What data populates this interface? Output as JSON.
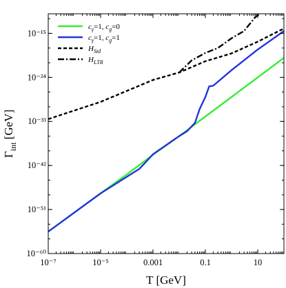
{
  "chart_data": {
    "type": "line",
    "xlabel": "T [GeV]",
    "ylabel": "Γint [GeV]",
    "xscale": "log",
    "yscale": "log",
    "xlim": [
      1e-07,
      100
    ],
    "ylim": [
      1e-60,
      1e-11
    ],
    "x_ticks": [
      {
        "value": 1e-07,
        "label": "10⁻⁷"
      },
      {
        "value": 1e-05,
        "label": "10⁻⁵"
      },
      {
        "value": 0.001,
        "label": "0.001"
      },
      {
        "value": 0.1,
        "label": "0.1"
      },
      {
        "value": 10,
        "label": "10"
      }
    ],
    "y_ticks": [
      {
        "value": 1e-60,
        "label": "10⁻⁶⁰"
      },
      {
        "value": 1e-51,
        "label": "10⁻⁵¹"
      },
      {
        "value": 1e-42,
        "label": "10⁻⁴²"
      },
      {
        "value": 1e-33,
        "label": "10⁻³³"
      },
      {
        "value": 1e-24,
        "label": "10⁻²⁴"
      },
      {
        "value": 1e-15,
        "label": "10⁻¹⁵"
      }
    ],
    "grid": false,
    "legend_position": "top-left",
    "series": [
      {
        "name": "cγ=1, cg=0",
        "color": "#33ee33",
        "style": "solid",
        "points": [
          [
            1e-07,
            3e-56
          ],
          [
            1e-06,
            2.5e-52
          ],
          [
            1e-05,
            2e-48
          ],
          [
            0.0001,
            1.5e-44
          ],
          [
            0.001,
            1.5e-40
          ],
          [
            0.01,
            1e-36
          ],
          [
            0.1,
            1e-32
          ],
          [
            1,
            1e-28
          ],
          [
            10,
            1e-24
          ],
          [
            100,
            1e-20
          ]
        ]
      },
      {
        "name": "cγ=1, cg=1",
        "color": "#2233dd",
        "style": "solid",
        "points": [
          [
            1e-07,
            3e-56
          ],
          [
            1e-05,
            2e-48
          ],
          [
            0.0003,
            2e-43
          ],
          [
            0.0005,
            3.5e-42
          ],
          [
            0.001,
            2e-40
          ],
          [
            0.01,
            1e-36
          ],
          [
            0.02,
            1e-35
          ],
          [
            0.04,
            5e-34
          ],
          [
            0.06,
            3e-31
          ],
          [
            0.1,
            1e-28
          ],
          [
            0.14,
            1.5e-26
          ],
          [
            0.2,
            2e-26
          ],
          [
            1,
            3e-23
          ],
          [
            10,
            5e-19
          ],
          [
            100,
            3e-15
          ]
        ]
      },
      {
        "name": "H_Std",
        "color": "#000000",
        "style": "dashed",
        "points": [
          [
            1e-07,
            3e-33
          ],
          [
            1e-05,
            1e-29
          ],
          [
            0.001,
            3e-25
          ],
          [
            0.01,
            1e-23
          ],
          [
            0.1,
            2e-21
          ],
          [
            1,
            8e-20
          ],
          [
            10,
            2e-17
          ],
          [
            100,
            1e-14
          ]
        ]
      },
      {
        "name": "H_LTR",
        "color": "#000000",
        "style": "dashdot",
        "points": [
          [
            0.01,
            1e-23
          ],
          [
            0.03,
            3e-21
          ],
          [
            0.1,
            1e-19
          ],
          [
            0.3,
            1e-18
          ],
          [
            1,
            1e-16
          ],
          [
            3,
            3e-15
          ],
          [
            8,
            2e-12
          ],
          [
            12,
            1e-11
          ]
        ]
      }
    ],
    "legend": [
      {
        "sym": "c",
        "sub": "γ",
        "mid": "=1, ",
        "sym2": "c",
        "sub2": "g",
        "tail": "=0"
      },
      {
        "sym": "c",
        "sub": "γ",
        "mid": "=1, ",
        "sym2": "c",
        "sub2": "g",
        "tail": "=1"
      },
      {
        "sym": "H",
        "sub": "Std",
        "mid": "",
        "sym2": "",
        "sub2": "",
        "tail": ""
      },
      {
        "sym": "H",
        "sub": "LTR",
        "mid": "",
        "sym2": "",
        "sub2": "",
        "tail": ""
      }
    ],
    "ylabel_parts": {
      "main": "Γ",
      "sub": "int",
      "rest": " [GeV]"
    }
  }
}
